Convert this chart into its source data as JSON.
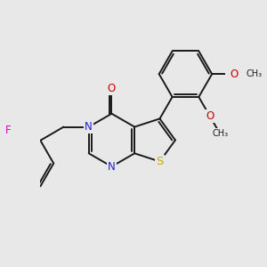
{
  "background_color": "#e8e8e8",
  "figsize": [
    3.0,
    3.0
  ],
  "dpi": 100,
  "bond_color": "#1a1a1a",
  "bond_width": 1.4,
  "atom_colors": {
    "N": "#2222cc",
    "O": "#cc0000",
    "S": "#ccaa00",
    "F": "#cc00cc"
  },
  "font_size": 8.5,
  "xlim": [
    -3.2,
    3.8
  ],
  "ylim": [
    -3.0,
    3.5
  ]
}
